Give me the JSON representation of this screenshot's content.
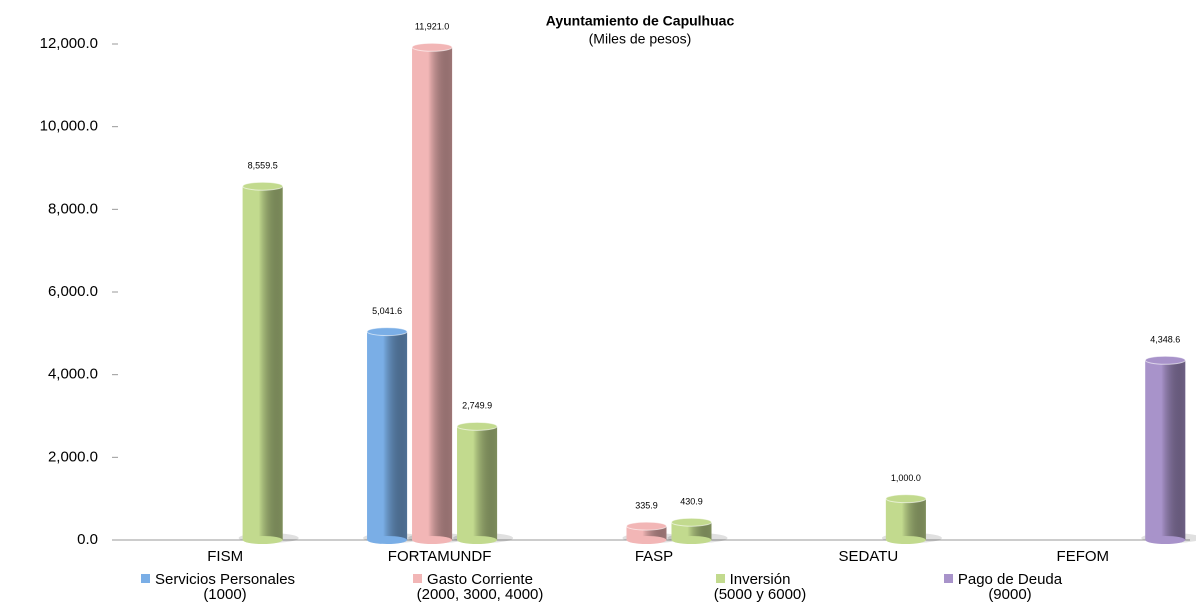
{
  "chart_data": {
    "type": "bar",
    "title": "Ayuntamiento de Capulhuac",
    "subtitle": "(Miles de pesos)",
    "categories": [
      "FISM",
      "FORTAMUNDF",
      "FASP",
      "SEDATU",
      "FEFOM"
    ],
    "series": [
      {
        "name": "Servicios Personales\n(1000)",
        "color": "#7aaee6",
        "values": [
          null,
          5041.6,
          null,
          null,
          null
        ],
        "value_labels": [
          null,
          "5,041.6",
          null,
          null,
          null
        ]
      },
      {
        "name": "Gasto Corriente\n(2000, 3000, 4000)",
        "color": "#f2b6b6",
        "values": [
          null,
          11921.0,
          335.9,
          null,
          null
        ],
        "value_labels": [
          null,
          "11,921.0",
          "335.9",
          null,
          null
        ]
      },
      {
        "name": "Inversión\n(5000 y 6000)",
        "color": "#c2da8e",
        "values": [
          8559.5,
          2749.9,
          430.9,
          1000.0,
          null
        ],
        "value_labels": [
          "8,559.5",
          "2,749.9",
          "430.9",
          "1,000.0",
          null
        ]
      },
      {
        "name": "Pago de Deuda\n(9000)",
        "color": "#a893ca",
        "values": [
          null,
          null,
          null,
          null,
          4348.6
        ],
        "value_labels": [
          null,
          null,
          null,
          null,
          "4,348.6"
        ]
      }
    ],
    "ylim": [
      0,
      12000
    ],
    "yticks": [
      {
        "value": 0,
        "label": "0.0"
      },
      {
        "value": 2000,
        "label": "2,000.0"
      },
      {
        "value": 4000,
        "label": "4,000.0"
      },
      {
        "value": 6000,
        "label": "6,000.0"
      },
      {
        "value": 8000,
        "label": "8,000.0"
      },
      {
        "value": 10000,
        "label": "10,000.0"
      },
      {
        "value": 12000,
        "label": "12,000.0"
      }
    ],
    "grid": false
  }
}
